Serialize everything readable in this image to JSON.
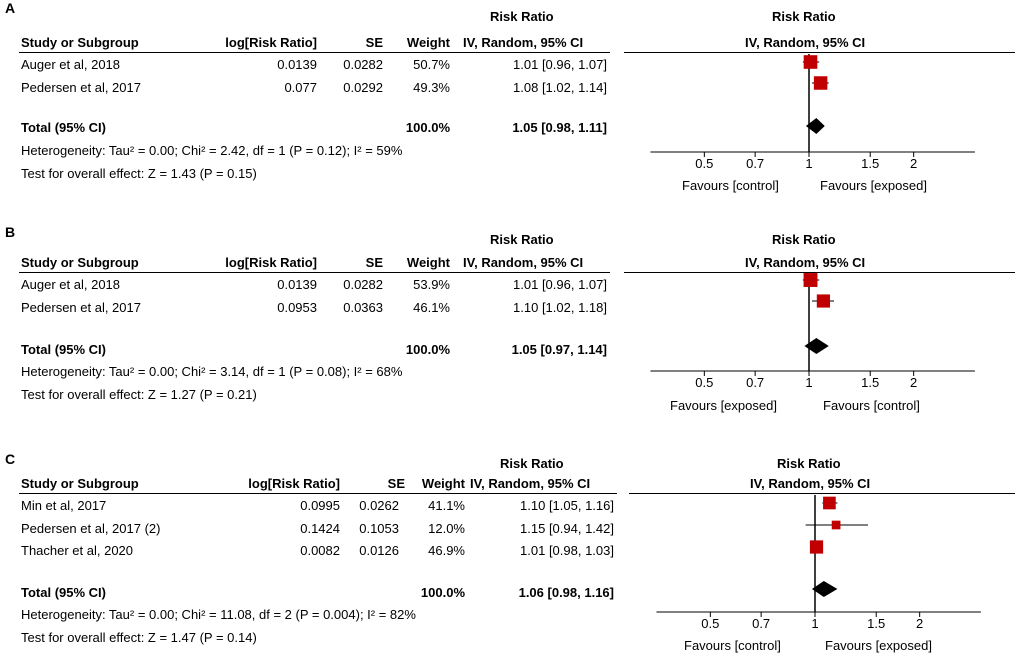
{
  "panels": [
    {
      "label": "A",
      "headers": {
        "study": "Study or Subgroup",
        "logrr": "log[Risk Ratio]",
        "se": "SE",
        "weight": "Weight",
        "rr_top": "Risk Ratio",
        "rr_bottom": "IV, Random, 95% CI",
        "plot_top": "Risk Ratio",
        "plot_bottom": "IV, Random, 95% CI"
      },
      "rows": [
        {
          "study": "Auger et al, 2018",
          "logrr": "0.0139",
          "se": "0.0282",
          "weight": "50.7%",
          "ci": "1.01 [0.96, 1.07]"
        },
        {
          "study": "Pedersen et al, 2017",
          "logrr": "0.077",
          "se": "0.0292",
          "weight": "49.3%",
          "ci": "1.08 [1.02, 1.14]"
        }
      ],
      "total": {
        "label": "Total (95% CI)",
        "weight": "100.0%",
        "ci": "1.05 [0.98, 1.11]"
      },
      "heterogeneity": "Heterogeneity: Tau² = 0.00; Chi² = 2.42, df = 1 (P = 0.12); I² = 59%",
      "overall": "Test for overall effect: Z = 1.43 (P = 0.15)",
      "axis_ticks": [
        "0.5",
        "0.7",
        "1",
        "1.5",
        "2"
      ],
      "favours_left": "Favours [control]",
      "favours_right": "Favours [exposed]"
    },
    {
      "label": "B",
      "headers": {
        "study": "Study or Subgroup",
        "logrr": "log[Risk Ratio]",
        "se": "SE",
        "weight": "Weight",
        "rr_top": "Risk Ratio",
        "rr_bottom": "IV, Random, 95% CI",
        "plot_top": "Risk Ratio",
        "plot_bottom": "IV, Random, 95% CI"
      },
      "rows": [
        {
          "study": "Auger et al, 2018",
          "logrr": "0.0139",
          "se": "0.0282",
          "weight": "53.9%",
          "ci": "1.01 [0.96, 1.07]"
        },
        {
          "study": "Pedersen et al, 2017",
          "logrr": "0.0953",
          "se": "0.0363",
          "weight": "46.1%",
          "ci": "1.10 [1.02, 1.18]"
        }
      ],
      "total": {
        "label": "Total (95% CI)",
        "weight": "100.0%",
        "ci": "1.05 [0.97, 1.14]"
      },
      "heterogeneity": "Heterogeneity: Tau² = 0.00; Chi² = 3.14, df = 1 (P = 0.08); I² = 68%",
      "overall": "Test for overall effect: Z = 1.27 (P = 0.21)",
      "axis_ticks": [
        "0.5",
        "0.7",
        "1",
        "1.5",
        "2"
      ],
      "favours_left": "Favours [exposed]",
      "favours_right": "Favours [control]"
    },
    {
      "label": "C",
      "headers": {
        "study": "Study or Subgroup",
        "logrr": "log[Risk Ratio]",
        "se": "SE",
        "weight": "Weight",
        "rr_top": "Risk Ratio",
        "rr_bottom": "IV, Random, 95% CI",
        "plot_top": "Risk Ratio",
        "plot_bottom": "IV, Random, 95% CI"
      },
      "rows": [
        {
          "study": "Min et al, 2017",
          "logrr": "0.0995",
          "se": "0.0262",
          "weight": "41.1%",
          "ci": "1.10 [1.05, 1.16]"
        },
        {
          "study": "Pedersen et al, 2017 (2)",
          "logrr": "0.1424",
          "se": "0.1053",
          "weight": "12.0%",
          "ci": "1.15 [0.94, 1.42]"
        },
        {
          "study": "Thacher et al, 2020",
          "logrr": "0.0082",
          "se": "0.0126",
          "weight": "46.9%",
          "ci": "1.01 [0.98, 1.03]"
        }
      ],
      "total": {
        "label": "Total (95% CI)",
        "weight": "100.0%",
        "ci": "1.06 [0.98, 1.16]"
      },
      "heterogeneity": "Heterogeneity: Tau² = 0.00; Chi² = 11.08, df = 2 (P = 0.004); I² = 82%",
      "overall": "Test for overall effect: Z = 1.47 (P = 0.14)",
      "axis_ticks": [
        "0.5",
        "0.7",
        "1",
        "1.5",
        "2"
      ],
      "favours_left": "Favours [control]",
      "favours_right": "Favours [exposed]"
    }
  ],
  "chart_data": [
    {
      "type": "forest",
      "title": "A",
      "x_scale": "log",
      "xlim": [
        0.35,
        3.0
      ],
      "ticks": [
        0.5,
        0.7,
        1,
        1.5,
        2
      ],
      "marker_color": "#c00000",
      "series": [
        {
          "name": "Auger et al, 2018",
          "est": 1.01,
          "lo": 0.96,
          "hi": 1.07,
          "weight": 50.7
        },
        {
          "name": "Pedersen et al, 2017",
          "est": 1.08,
          "lo": 1.02,
          "hi": 1.14,
          "weight": 49.3
        }
      ],
      "total": {
        "est": 1.05,
        "lo": 0.98,
        "hi": 1.11
      }
    },
    {
      "type": "forest",
      "title": "B",
      "x_scale": "log",
      "xlim": [
        0.35,
        3.0
      ],
      "ticks": [
        0.5,
        0.7,
        1,
        1.5,
        2
      ],
      "marker_color": "#c00000",
      "series": [
        {
          "name": "Auger et al, 2018",
          "est": 1.01,
          "lo": 0.96,
          "hi": 1.07,
          "weight": 53.9
        },
        {
          "name": "Pedersen et al, 2017",
          "est": 1.1,
          "lo": 1.02,
          "hi": 1.18,
          "weight": 46.1
        }
      ],
      "total": {
        "est": 1.05,
        "lo": 0.97,
        "hi": 1.14
      }
    },
    {
      "type": "forest",
      "title": "C",
      "x_scale": "log",
      "xlim": [
        0.35,
        3.0
      ],
      "ticks": [
        0.5,
        0.7,
        1,
        1.5,
        2
      ],
      "marker_color": "#c00000",
      "series": [
        {
          "name": "Min et al, 2017",
          "est": 1.1,
          "lo": 1.05,
          "hi": 1.16,
          "weight": 41.1
        },
        {
          "name": "Pedersen et al, 2017 (2)",
          "est": 1.15,
          "lo": 0.94,
          "hi": 1.42,
          "weight": 12.0
        },
        {
          "name": "Thacher et al, 2020",
          "est": 1.01,
          "lo": 0.98,
          "hi": 1.03,
          "weight": 46.9
        }
      ],
      "total": {
        "est": 1.06,
        "lo": 0.98,
        "hi": 1.16
      }
    }
  ]
}
